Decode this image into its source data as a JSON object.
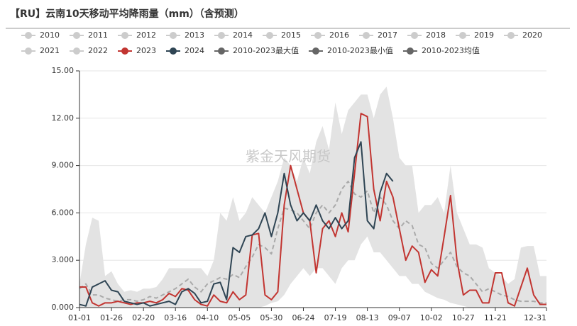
{
  "chart_data": {
    "type": "line",
    "title": "【RU】云南10天移动平均降雨量（mm）（含预测）",
    "watermark": "紫金天风期货",
    "legend_inactive": [
      "2010",
      "2011",
      "2012",
      "2013",
      "2014",
      "2015",
      "2016",
      "2017",
      "2018",
      "2019",
      "2020",
      "2021",
      "2022"
    ],
    "inactive_color": "#cccccc",
    "categories": [
      "01-01",
      null,
      null,
      null,
      null,
      "01-26",
      null,
      null,
      null,
      null,
      "02-20",
      null,
      null,
      null,
      null,
      "03-16",
      null,
      null,
      null,
      null,
      "04-10",
      null,
      null,
      null,
      null,
      "05-05",
      null,
      null,
      null,
      null,
      "05-30",
      null,
      null,
      null,
      null,
      "06-24",
      null,
      null,
      null,
      null,
      "07-19",
      null,
      null,
      null,
      null,
      "08-13",
      null,
      null,
      null,
      null,
      "09-07",
      null,
      null,
      null,
      null,
      "10-02",
      null,
      null,
      null,
      null,
      "10-27",
      null,
      null,
      null,
      null,
      "11-21",
      null,
      null,
      null,
      null,
      null,
      null,
      null,
      "12-31"
    ],
    "ylim": [
      0,
      15
    ],
    "yticks": [
      {
        "value": 0,
        "label": "0.000"
      },
      {
        "value": 3,
        "label": "3.000"
      },
      {
        "value": 6,
        "label": "6.000"
      },
      {
        "value": 9,
        "label": "9.000"
      },
      {
        "value": 12,
        "label": "12.00"
      },
      {
        "value": 15,
        "label": "15.00"
      }
    ],
    "grid": true,
    "series": [
      {
        "name": "2023",
        "color": "#c23531",
        "kind": "line",
        "values": [
          1.3,
          1.3,
          0.3,
          0.1,
          0.3,
          0.3,
          0.4,
          0.3,
          0.2,
          0.3,
          0.3,
          0.4,
          0.3,
          0.5,
          0.9,
          0.7,
          1.2,
          1.1,
          0.5,
          0.2,
          0.1,
          0.8,
          0.4,
          0.3,
          1.0,
          0.5,
          0.8,
          4.6,
          4.7,
          0.8,
          0.5,
          1.0,
          6.5,
          9.0,
          7.5,
          6.0,
          5.5,
          2.2,
          5.0,
          5.5,
          4.5,
          6.0,
          4.8,
          8.5,
          12.3,
          12.1,
          7.5,
          5.5,
          8.0,
          7.0,
          5.0,
          3.0,
          3.9,
          3.5,
          1.6,
          2.4,
          2.0,
          4.5,
          7.1,
          3.0,
          0.8,
          1.1,
          1.1,
          0.3,
          0.3,
          2.2,
          2.2,
          0.3,
          0.1,
          1.3,
          2.5,
          0.8,
          0.2,
          0.2
        ]
      },
      {
        "name": "2024",
        "color": "#2f4554",
        "kind": "line",
        "values": [
          0.2,
          0.1,
          1.3,
          1.5,
          1.7,
          1.1,
          1.0,
          0.4,
          0.3,
          0.2,
          0.3,
          0.1,
          0.2,
          0.3,
          0.4,
          0.2,
          1.0,
          1.2,
          0.9,
          0.3,
          0.4,
          1.5,
          1.6,
          0.5,
          3.8,
          3.5,
          4.5,
          4.6,
          5.0,
          6.0,
          4.5,
          6.0,
          8.5,
          6.5,
          5.5,
          6.0,
          5.5,
          6.5,
          5.5,
          5.0,
          5.7,
          5.0,
          5.5,
          9.5,
          10.5,
          5.5,
          5.0,
          7.3,
          8.5,
          8.0,
          null,
          null,
          null,
          null,
          null,
          null,
          null,
          null,
          null,
          null,
          null,
          null,
          null,
          null,
          null,
          null,
          null,
          null,
          null,
          null,
          null,
          null,
          null,
          null
        ]
      },
      {
        "name": "2010-2023最大值",
        "color": "#666666",
        "kind": "area-max",
        "fill": "#e3e3e3",
        "values": [
          1.5,
          4.0,
          5.7,
          5.5,
          2.0,
          2.3,
          1.5,
          1.0,
          1.1,
          1.0,
          1.2,
          1.2,
          1.3,
          1.8,
          2.5,
          2.5,
          2.5,
          2.5,
          2.5,
          2.5,
          2.0,
          3.0,
          6.0,
          5.5,
          7.0,
          5.5,
          6.0,
          7.0,
          6.5,
          6.0,
          7.0,
          8.0,
          9.5,
          9.0,
          8.0,
          9.5,
          8.5,
          10.5,
          11.5,
          10.0,
          13.0,
          11.0,
          12.5,
          13.0,
          13.5,
          13.5,
          12.0,
          13.5,
          14.0,
          12.0,
          9.5,
          9.0,
          9.0,
          6.0,
          6.5,
          6.5,
          7.0,
          6.0,
          9.0,
          6.0,
          5.0,
          4.0,
          4.0,
          3.8,
          2.5,
          2.2,
          2.0,
          1.5,
          1.8,
          3.8,
          3.9,
          3.9,
          2.0,
          2.0
        ]
      },
      {
        "name": "2010-2023最小值",
        "color": "#666666",
        "kind": "area-min",
        "fill": "#ffffff",
        "values": [
          0,
          0,
          0,
          0,
          0,
          0,
          0,
          0,
          0,
          0,
          0,
          0,
          0,
          0,
          0,
          0,
          0,
          0,
          0,
          0,
          0,
          0,
          0,
          0,
          0,
          0,
          0,
          0,
          0,
          0.1,
          0.3,
          0.4,
          0.8,
          1.5,
          2.0,
          2.5,
          2.0,
          2.5,
          2.5,
          2.0,
          1.5,
          2.5,
          3.0,
          3.0,
          4.0,
          4.5,
          3.5,
          3.5,
          3.0,
          2.5,
          2.0,
          2.0,
          1.5,
          1.5,
          1.0,
          0.8,
          0.6,
          0.5,
          0.3,
          0.2,
          0.1,
          0,
          0,
          0,
          0,
          0,
          0,
          0,
          0,
          0,
          0,
          0,
          0,
          0
        ]
      },
      {
        "name": "2010-2023均值",
        "color": "#666666",
        "kind": "dashed",
        "line_color": "#aaaaaa",
        "values": [
          1.2,
          1.5,
          0.8,
          0.8,
          0.6,
          0.5,
          0.4,
          0.5,
          0.5,
          0.4,
          0.5,
          0.7,
          0.6,
          0.8,
          1.0,
          1.2,
          1.5,
          1.8,
          1.3,
          1.0,
          1.5,
          1.7,
          1.9,
          1.8,
          2.1,
          1.9,
          2.6,
          3.2,
          4.0,
          3.8,
          3.4,
          5.0,
          6.3,
          6.2,
          6.0,
          5.5,
          5.0,
          6.0,
          6.5,
          6.0,
          6.5,
          7.5,
          8.0,
          7.2,
          7.0,
          7.4,
          6.0,
          7.0,
          6.5,
          5.5,
          5.0,
          5.5,
          5.2,
          4.0,
          3.8,
          2.8,
          2.5,
          3.0,
          3.5,
          2.6,
          2.2,
          2.0,
          1.5,
          1.0,
          1.2,
          1.0,
          0.8,
          0.7,
          0.5,
          0.4,
          0.4,
          0.4,
          0.3,
          0.3
        ]
      }
    ]
  }
}
